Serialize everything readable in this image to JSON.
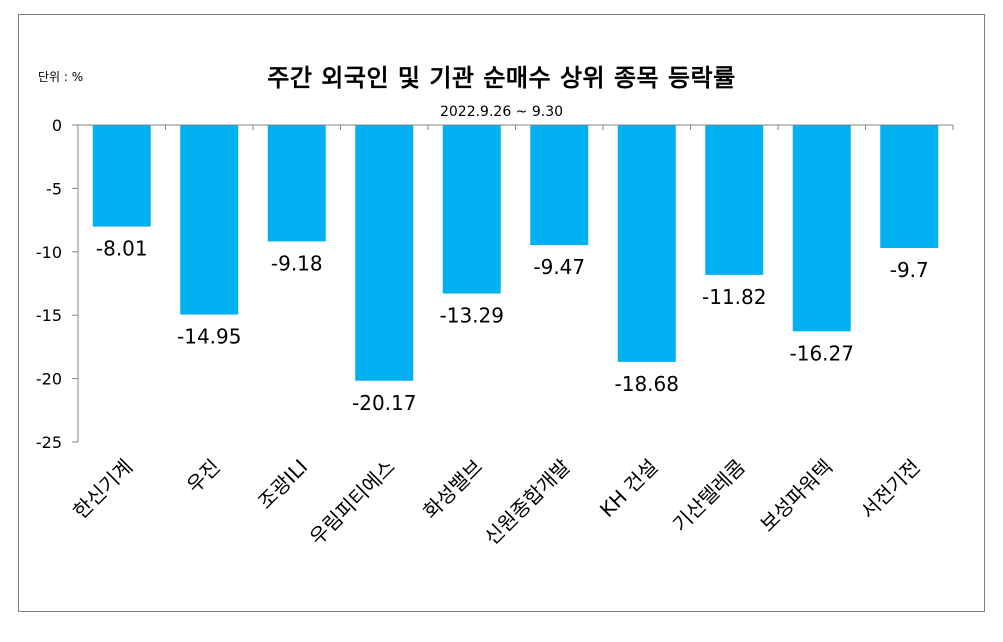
{
  "chart_data": {
    "type": "bar",
    "title": "주간 외국인 및 기관  순매수 상위 종목 등락률",
    "subtitle": "2022.9.26 ~ 9.30",
    "unit_label": "단위 : %",
    "categories": [
      "한신기계",
      "우진",
      "조광ILI",
      "우림피티에스",
      "화성밸브",
      "신원종합개발",
      "KH 건설",
      "기산텔레콤",
      "보성파워텍",
      "서전기전"
    ],
    "values": [
      -8.01,
      -14.95,
      -9.18,
      -20.17,
      -13.29,
      -9.47,
      -18.68,
      -11.82,
      -16.27,
      -9.7
    ],
    "value_labels": [
      "-8.01",
      "-14.95",
      "-9.18",
      "-20.17",
      "-13.29",
      "-9.47",
      "-18.68",
      "-11.82",
      "-16.27",
      "-9.7"
    ],
    "yticks": [
      0,
      -5,
      -10,
      -15,
      -20,
      -25
    ],
    "ytick_labels": [
      "0",
      "-5",
      "-10",
      "-15",
      "-20",
      "-25"
    ],
    "ylim": [
      -25,
      0
    ],
    "xlabel": "",
    "ylabel": "",
    "grid": false,
    "bar_color": "#00B0F0"
  }
}
